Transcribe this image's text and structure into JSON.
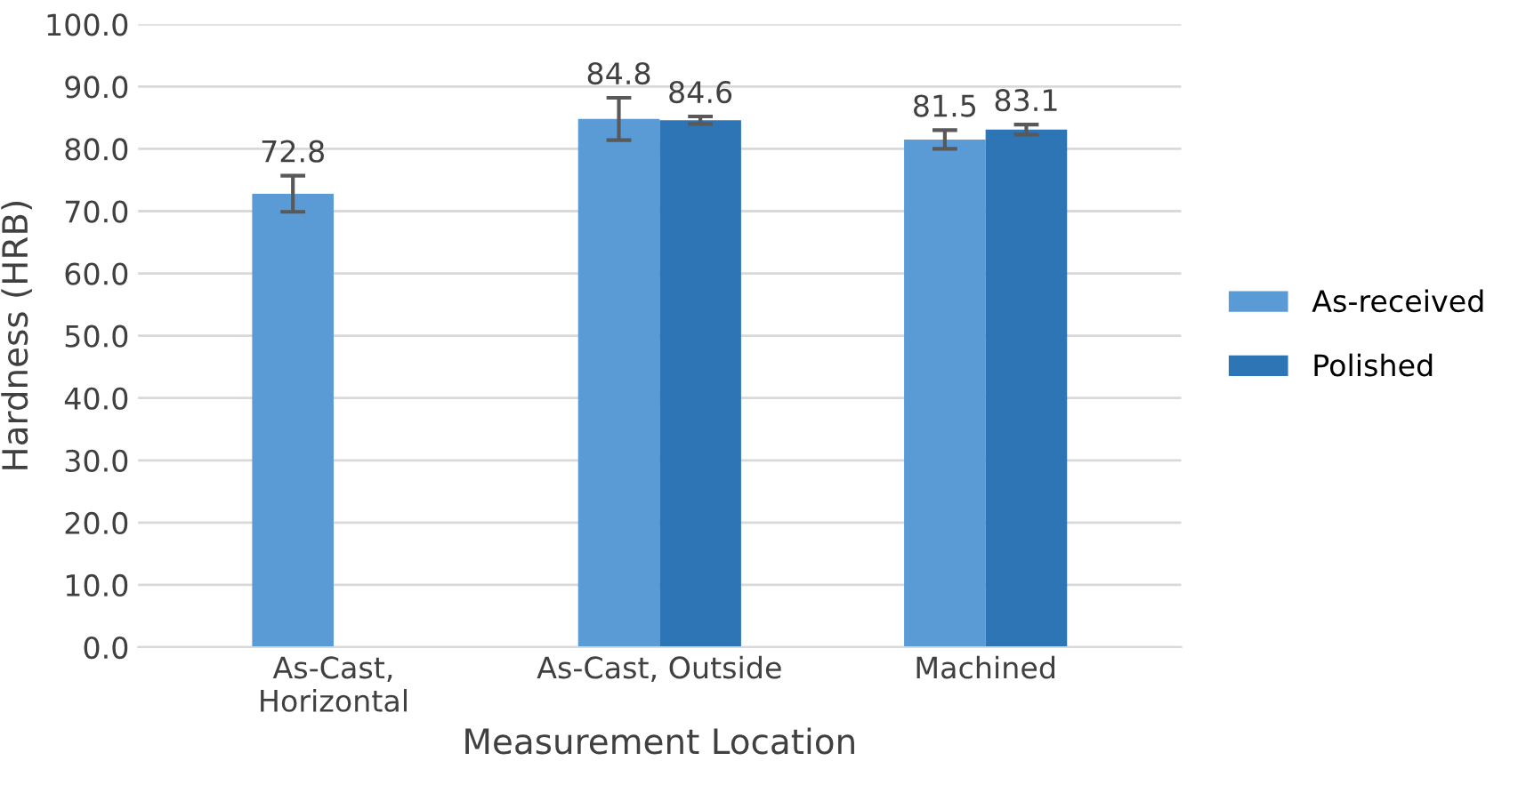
{
  "chart_data": {
    "type": "bar",
    "xlabel": "Measurement Location",
    "ylabel": "Hardness (HRB)",
    "categories": [
      "As-Cast,\nHorizontal",
      "As-Cast, Outside",
      "Machined"
    ],
    "series": [
      {
        "name": "As-received",
        "color": "#5b9bd5",
        "values": [
          72.8,
          84.8,
          81.5
        ],
        "errors": [
          2.9,
          3.4,
          1.5
        ],
        "value_labels": [
          "72.8",
          "84.8",
          "81.5"
        ]
      },
      {
        "name": "Polished",
        "color": "#2e75b6",
        "values": [
          0,
          84.6,
          83.1
        ],
        "errors": [
          null,
          0.6,
          0.8
        ],
        "value_labels": [
          null,
          "84.6",
          "83.1"
        ]
      }
    ],
    "ylim": [
      0,
      100
    ],
    "yticks": [
      {
        "value": 0,
        "label": "0.0"
      },
      {
        "value": 10,
        "label": "10.0"
      },
      {
        "value": 20,
        "label": "20.0"
      },
      {
        "value": 30,
        "label": "30.0"
      },
      {
        "value": 40,
        "label": "40.0"
      },
      {
        "value": 50,
        "label": "50.0"
      },
      {
        "value": 60,
        "label": "60.0"
      },
      {
        "value": 70,
        "label": "70.0"
      },
      {
        "value": 80,
        "label": "80.0"
      },
      {
        "value": 90,
        "label": "90.0"
      },
      {
        "value": 100,
        "label": "100.0"
      }
    ],
    "grid": "y",
    "legend": "right"
  }
}
